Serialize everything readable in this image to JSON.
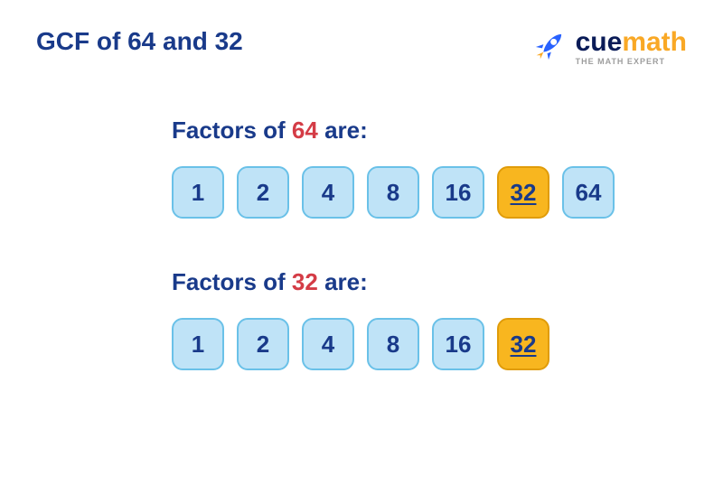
{
  "title": "GCF of 64 and 32",
  "logo": {
    "cue": "cue",
    "math": "math",
    "tagline": "THE MATH EXPERT",
    "cue_color": "#0a1b57",
    "math_color": "#f9a825",
    "tagline_color": "#9e9e9e",
    "rocket_body": "#2962ff",
    "rocket_flame": "#f9a825"
  },
  "colors": {
    "title": "#193a8a",
    "section_text": "#193a8a",
    "number_highlight": "#d43c46",
    "box_normal_bg": "#bfe3f7",
    "box_normal_border": "#6ac1e8",
    "box_highlight_bg": "#f8b61f",
    "box_highlight_border": "#e09c0a",
    "box_text": "#193a8a"
  },
  "sections": [
    {
      "label_prefix": "Factors of ",
      "label_number": "64",
      "label_suffix": " are:",
      "factors": [
        {
          "v": "1",
          "hl": false
        },
        {
          "v": "2",
          "hl": false
        },
        {
          "v": "4",
          "hl": false
        },
        {
          "v": "8",
          "hl": false
        },
        {
          "v": "16",
          "hl": false
        },
        {
          "v": "32",
          "hl": true
        },
        {
          "v": "64",
          "hl": false
        }
      ]
    },
    {
      "label_prefix": "Factors of ",
      "label_number": "32",
      "label_suffix": " are:",
      "factors": [
        {
          "v": "1",
          "hl": false
        },
        {
          "v": "2",
          "hl": false
        },
        {
          "v": "4",
          "hl": false
        },
        {
          "v": "8",
          "hl": false
        },
        {
          "v": "16",
          "hl": false
        },
        {
          "v": "32",
          "hl": true
        }
      ]
    }
  ]
}
